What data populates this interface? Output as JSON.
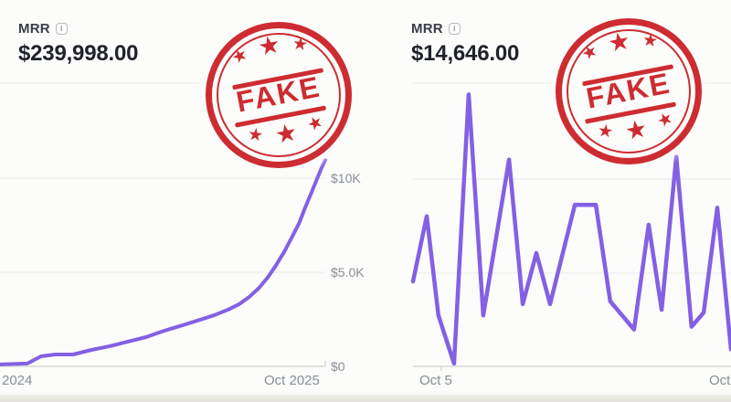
{
  "colors": {
    "bg": "#fcfcfa",
    "line-purple": "#8360e4",
    "grid": "#eaeae7",
    "axis": "#d8d8d4",
    "tick-label": "#878e96",
    "metric-label": "#3b3d47",
    "amount": "#1f222a",
    "info-icon": "#9aa0a8",
    "stamp-red": "#cb2026",
    "bottom-strip-top": "#f0efe9",
    "bottom-strip-bottom": "#e2e1d8"
  },
  "stamp": {
    "text": "FAKE",
    "star_glyph": "★"
  },
  "chart_data": [
    {
      "type": "line",
      "metric": "MRR",
      "info_glyph": "i",
      "current_value": "$239,998.00",
      "legend": "none",
      "grid": "horizontal gridlines at $0, $5.0K, $10K and unlabeled $15K top line",
      "x_axis": {
        "tick_labels": [
          "2024",
          "Oct 2025"
        ]
      },
      "y_axis": {
        "tick_labels": [
          "$10K",
          "$5.0K",
          "$0"
        ],
        "range_usd": [
          0,
          15000
        ],
        "render_max": 15000
      },
      "series": [
        {
          "name": "MRR history",
          "unit": "USD",
          "x_frac": [
            0,
            0.084,
            0.126,
            0.169,
            0.225,
            0.281,
            0.337,
            0.393,
            0.449,
            0.506,
            0.562,
            0.618,
            0.66,
            0.702,
            0.736,
            0.767,
            0.795,
            0.823,
            0.848,
            0.874,
            0.896,
            0.919,
            0.938,
            0.958,
            0.975,
            0.989,
            1
          ],
          "values": [
            100,
            150,
            530,
            630,
            630,
            870,
            1070,
            1310,
            1550,
            1890,
            2180,
            2480,
            2720,
            3010,
            3300,
            3690,
            4130,
            4710,
            5340,
            6070,
            6800,
            7570,
            8400,
            9220,
            9950,
            10530,
            10920
          ]
        }
      ]
    },
    {
      "type": "line",
      "metric": "MRR",
      "info_glyph": "i",
      "current_value": "$14,646.00",
      "legend": "none",
      "grid": "4 horizontal gridlines; y-axis tick labels cut off beyond right edge",
      "x_axis": {
        "tick_labels": [
          "Oct 5",
          "Oct"
        ]
      },
      "y_axis": {
        "tick_labels": [],
        "range_frac": [
          0,
          1
        ],
        "render_max": 1
      },
      "series": [
        {
          "name": "MRR history",
          "unit": "fraction of visible plot height",
          "x_frac": [
            0,
            0.043,
            0.08,
            0.129,
            0.175,
            0.221,
            0.302,
            0.345,
            0.388,
            0.431,
            0.509,
            0.575,
            0.62,
            0.695,
            0.741,
            0.782,
            0.828,
            0.876,
            0.914,
            0.957,
            1
          ],
          "values": [
            0.3,
            0.53,
            0.18,
            0.01,
            0.96,
            0.18,
            0.73,
            0.22,
            0.4,
            0.22,
            0.57,
            0.57,
            0.23,
            0.13,
            0.5,
            0.2,
            0.74,
            0.14,
            0.19,
            0.56,
            0.06
          ]
        }
      ]
    }
  ]
}
